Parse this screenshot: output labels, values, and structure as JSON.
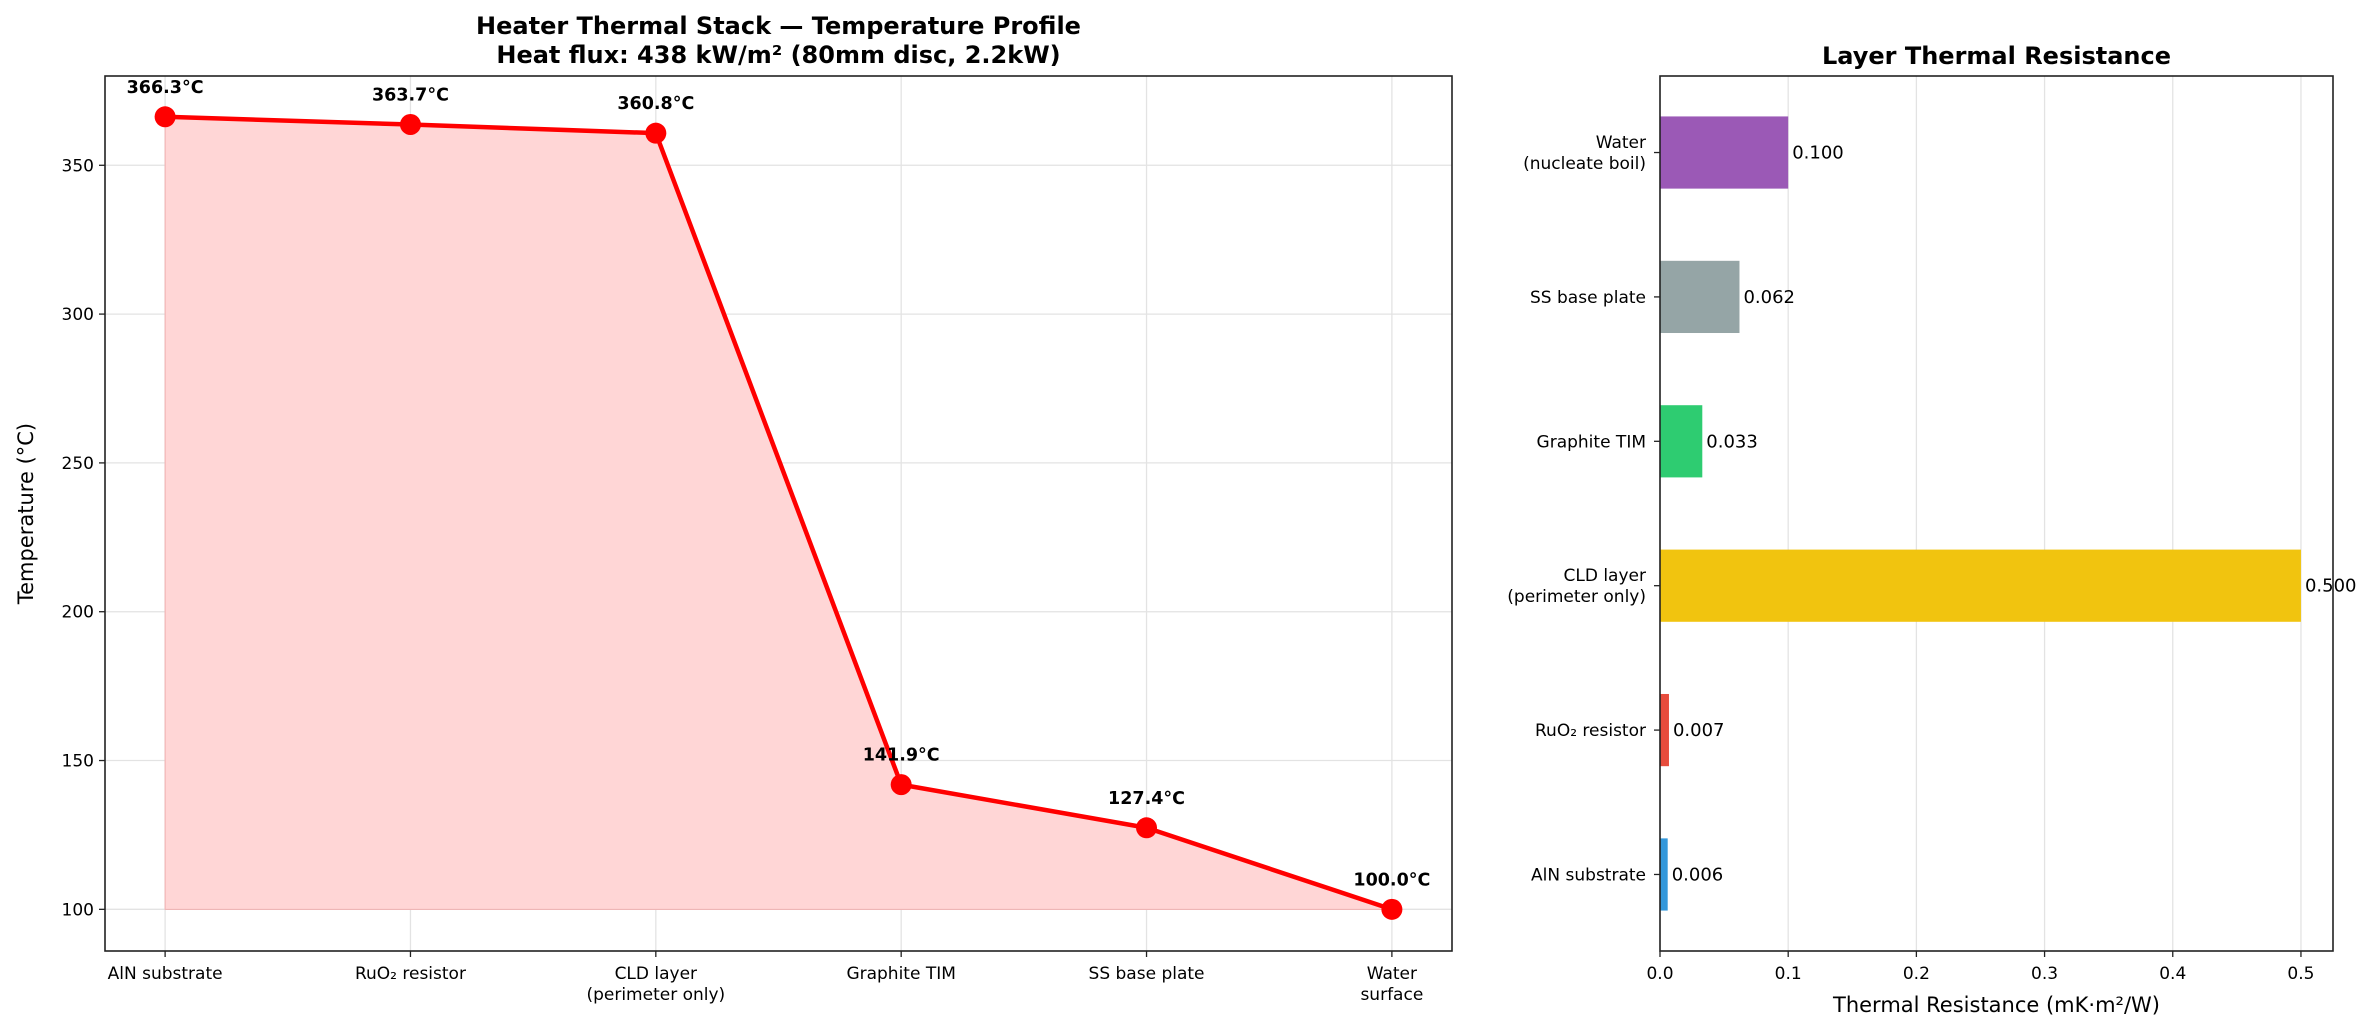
{
  "chart_data": [
    {
      "type": "line",
      "title": "Heater Thermal Stack — Temperature Profile\nHeat flux: 438 kW/m² (80mm disc, 2.2kW)",
      "xlabel": "",
      "ylabel": "Temperature (°C)",
      "categories": [
        "AlN substrate",
        "RuO₂ resistor",
        "CLD layer\n(perimeter only)",
        "Graphite TIM",
        "SS base plate",
        "Water\nsurface"
      ],
      "values": [
        366.3,
        363.7,
        360.8,
        141.9,
        127.4,
        100.0
      ],
      "data_labels": [
        "366.3°C",
        "363.7°C",
        "360.8°C",
        "141.9°C",
        "127.4°C",
        "100.0°C"
      ],
      "ylim": [
        86,
        380
      ],
      "yticks": [
        100,
        150,
        200,
        250,
        300,
        350
      ],
      "fill_baseline": 100,
      "grid": true,
      "line_color": "#ff0000",
      "fill_color": "#ffd6d6"
    },
    {
      "type": "bar",
      "orientation": "horizontal",
      "title": "Layer Thermal Resistance",
      "xlabel": "Thermal Resistance (mK·m²/W)",
      "ylabel": "",
      "categories": [
        "AlN substrate",
        "RuO₂ resistor",
        "CLD layer\n(perimeter only)",
        "Graphite TIM",
        "SS base plate",
        "Water\n(nucleate boil)"
      ],
      "values": [
        0.006,
        0.007,
        0.5,
        0.033,
        0.062,
        0.1
      ],
      "data_labels": [
        "0.006",
        "0.007",
        "0.500",
        "0.033",
        "0.062",
        "0.100"
      ],
      "colors": [
        "#3498db",
        "#e74c3c",
        "#f1c40f",
        "#2ecc71",
        "#95a5a6",
        "#9b59b6"
      ],
      "xlim": [
        0,
        0.525
      ],
      "xticks": [
        "0.0",
        "0.1",
        "0.2",
        "0.3",
        "0.4",
        "0.5"
      ],
      "grid": true
    }
  ]
}
